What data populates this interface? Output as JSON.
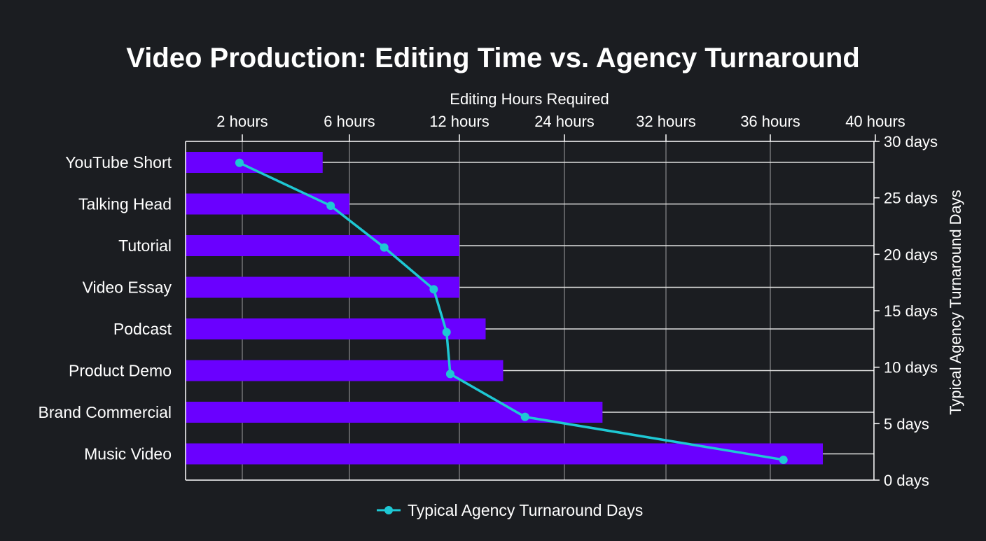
{
  "chart_data": {
    "type": "bar+line",
    "title": "Video Production: Editing Time vs. Agency Turnaround",
    "xlabel": "Editing Hours Required",
    "y2label": "Typical Agency Turnaround Days",
    "categories": [
      "YouTube Short",
      "Talking Head",
      "Tutorial",
      "Video Essay",
      "Podcast",
      "Product Demo",
      "Brand Commercial",
      "Music Video"
    ],
    "x_ticks": [
      {
        "value": 2,
        "label": "2 hours"
      },
      {
        "value": 6,
        "label": "6 hours"
      },
      {
        "value": 12,
        "label": "12 hours"
      },
      {
        "value": 24,
        "label": "24 hours"
      },
      {
        "value": 32,
        "label": "32 hours"
      },
      {
        "value": 36,
        "label": "36 hours"
      },
      {
        "value": 40,
        "label": "40 hours"
      }
    ],
    "y2_ticks": [
      {
        "value": 0,
        "label": "0 days"
      },
      {
        "value": 5,
        "label": "5 days"
      },
      {
        "value": 10,
        "label": "10 days"
      },
      {
        "value": 15,
        "label": "15 days"
      },
      {
        "value": 20,
        "label": "20 days"
      },
      {
        "value": 25,
        "label": "25 days"
      },
      {
        "value": 30,
        "label": "30 days"
      }
    ],
    "y2lim": [
      0,
      30
    ],
    "bar_series": {
      "values": [
        5,
        6,
        12,
        12,
        15,
        17,
        27,
        38
      ],
      "color": "#6a00ff"
    },
    "line_series": {
      "name": "Typical Agency Turnaround Days",
      "x_hours": [
        1.9,
        5.3,
        7.9,
        10.6,
        11.3,
        11.5,
        19.5,
        36.5
      ],
      "values": [
        28.1,
        24.3,
        20.6,
        16.9,
        13.1,
        9.4,
        5.6,
        1.8
      ],
      "color": "#1ec8d4"
    },
    "grid": true,
    "legend_position": "bottom"
  }
}
